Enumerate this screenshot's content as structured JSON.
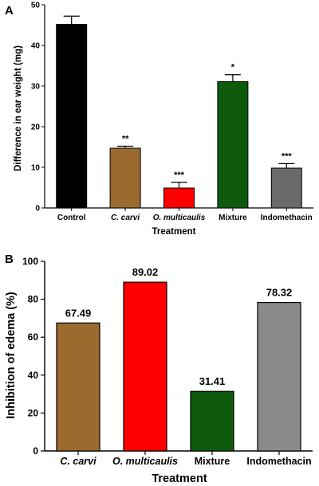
{
  "chart_data": [
    {
      "panel": "A",
      "type": "bar",
      "categories": [
        "Control",
        "C. carvi",
        "O. multicaulis",
        "Mixture",
        "Indomethacin"
      ],
      "italic_categories": [
        false,
        true,
        true,
        false,
        false
      ],
      "values": [
        45.2,
        14.7,
        4.9,
        31.1,
        9.8
      ],
      "errors": [
        2.0,
        0.5,
        1.4,
        1.7,
        1.1
      ],
      "significance": [
        "",
        "**",
        "***",
        "*",
        "***"
      ],
      "colors": [
        "#000000",
        "#9a6a2f",
        "#ff0000",
        "#0d5a0d",
        "#6a6a6a"
      ],
      "xlabel": "Treatment",
      "ylabel": "Difference in ear weight (mg)",
      "ylim": [
        0,
        50
      ],
      "yticks": [
        0,
        10,
        20,
        30,
        40,
        50
      ],
      "grid": false,
      "legend": "none"
    },
    {
      "panel": "B",
      "type": "bar",
      "categories": [
        "C. carvi",
        "O. multicaulis",
        "Mixture",
        "Indomethacin"
      ],
      "italic_categories": [
        true,
        true,
        false,
        false
      ],
      "values": [
        67.49,
        89.02,
        31.41,
        78.32
      ],
      "value_labels": [
        "67.49",
        "89.02",
        "31.41",
        "78.32"
      ],
      "colors": [
        "#9a6a2f",
        "#ff0000",
        "#0d5a0d",
        "#8a8a8a"
      ],
      "xlabel": "Treatment",
      "ylabel": "Inhibition of edema (%)",
      "ylim": [
        0,
        100
      ],
      "yticks": [
        0,
        20,
        40,
        60,
        80,
        100
      ],
      "grid": false,
      "legend": "none"
    }
  ]
}
